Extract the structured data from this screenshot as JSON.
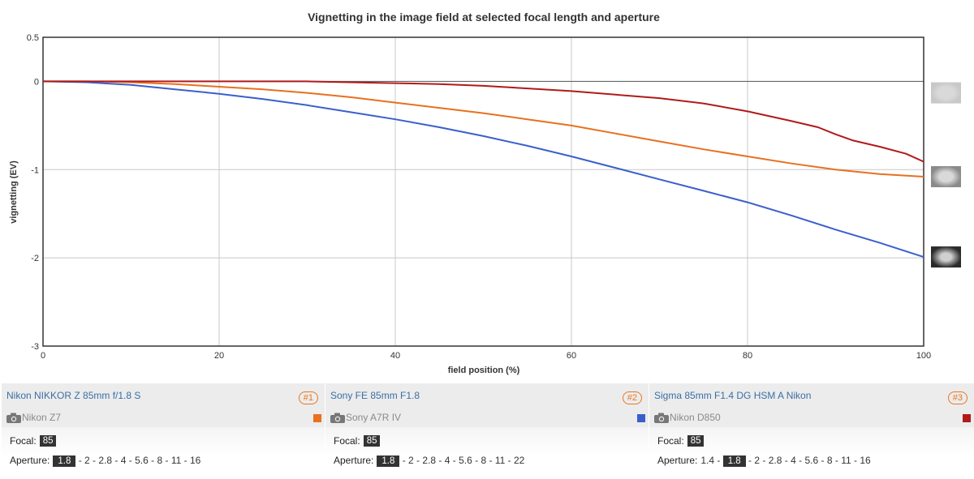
{
  "chart_data": {
    "type": "line",
    "title": "Vignetting in the image field at selected focal length and aperture",
    "xlabel": "field position (%)",
    "ylabel": "vignetting (EV)",
    "xlim": [
      0,
      100
    ],
    "ylim": [
      -3,
      0.5
    ],
    "xticks": [
      0,
      20,
      40,
      60,
      80,
      100
    ],
    "yticks": [
      0.5,
      0,
      -1,
      -2,
      -3
    ],
    "yticklabels": [
      "0.5",
      "0",
      "-1",
      "-2",
      "-3"
    ],
    "grid": true,
    "series": [
      {
        "color": "#e8701e",
        "x": [
          0,
          5,
          10,
          15,
          20,
          25,
          30,
          35,
          40,
          45,
          50,
          55,
          60,
          65,
          70,
          75,
          80,
          85,
          90,
          95,
          100
        ],
        "y": [
          0,
          0,
          -0.01,
          -0.03,
          -0.06,
          -0.09,
          -0.13,
          -0.18,
          -0.24,
          -0.3,
          -0.36,
          -0.43,
          -0.5,
          -0.59,
          -0.68,
          -0.77,
          -0.85,
          -0.93,
          -1.0,
          -1.05,
          -1.08
        ]
      },
      {
        "color": "#3a5fcd",
        "x": [
          0,
          5,
          10,
          15,
          20,
          25,
          30,
          35,
          40,
          45,
          50,
          55,
          60,
          65,
          70,
          75,
          80,
          85,
          90,
          95,
          100
        ],
        "y": [
          0,
          -0.01,
          -0.04,
          -0.09,
          -0.14,
          -0.2,
          -0.27,
          -0.35,
          -0.43,
          -0.52,
          -0.62,
          -0.73,
          -0.85,
          -0.98,
          -1.11,
          -1.24,
          -1.37,
          -1.52,
          -1.68,
          -1.83,
          -1.99
        ]
      },
      {
        "color": "#b01a1a",
        "x": [
          0,
          10,
          20,
          30,
          40,
          45,
          50,
          55,
          60,
          65,
          70,
          75,
          80,
          85,
          88,
          90,
          92,
          95,
          98,
          100
        ],
        "y": [
          0,
          0,
          0,
          0,
          -0.02,
          -0.03,
          -0.05,
          -0.08,
          -0.11,
          -0.15,
          -0.19,
          -0.25,
          -0.34,
          -0.45,
          -0.52,
          -0.6,
          -0.67,
          -0.74,
          -0.82,
          -0.91
        ]
      }
    ],
    "thumbnails": [
      {
        "name": "vignette-thumb-light",
        "y": -0.13,
        "darkness": 0.12
      },
      {
        "name": "vignette-thumb-medium",
        "y": -1.08,
        "darkness": 0.45
      },
      {
        "name": "vignette-thumb-dark",
        "y": -1.99,
        "darkness": 0.85
      }
    ]
  },
  "panels": [
    {
      "lens": "Nikon NIKKOR Z 85mm f/1.8 S",
      "badge": "#1",
      "camera": "Nikon Z7",
      "color": "#e8701e",
      "focal_label": "Focal:",
      "focal": "85",
      "aperture_label": "Aperture:",
      "apertures": [
        "1.8",
        "2",
        "2.8",
        "4",
        "5.6",
        "8",
        "11",
        "16"
      ],
      "selected": "1.8"
    },
    {
      "lens": "Sony FE 85mm F1.8",
      "badge": "#2",
      "camera": "Sony A7R IV",
      "color": "#3a5fcd",
      "focal_label": "Focal:",
      "focal": "85",
      "aperture_label": "Aperture:",
      "apertures": [
        "1.8",
        "2",
        "2.8",
        "4",
        "5.6",
        "8",
        "11",
        "22"
      ],
      "selected": "1.8"
    },
    {
      "lens": "Sigma 85mm F1.4 DG HSM A Nikon",
      "badge": "#3",
      "camera": "Nikon D850",
      "color": "#b01a1a",
      "focal_label": "Focal:",
      "focal": "85",
      "aperture_label": "Aperture:",
      "apertures": [
        "1.4",
        "1.8",
        "2",
        "2.8",
        "4",
        "5.6",
        "8",
        "11",
        "16"
      ],
      "selected": "1.8"
    }
  ]
}
